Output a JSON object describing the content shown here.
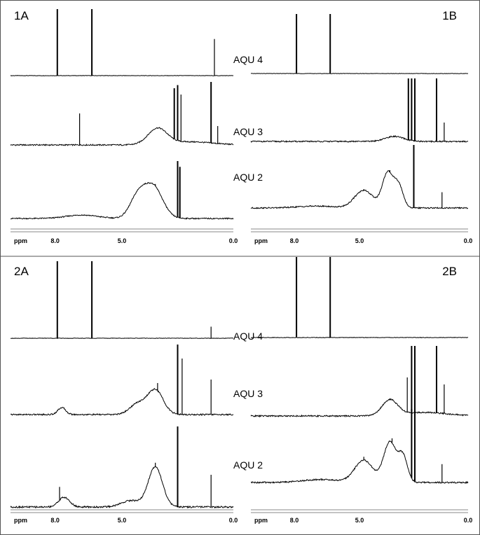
{
  "chart_data": [
    {
      "type": "line",
      "panel": "1A",
      "x_unit": "ppm",
      "xlim": [
        10.0,
        0.0
      ],
      "x_ticks": [
        "8.0",
        "5.0",
        "0.0"
      ],
      "x_tick_values": [
        8.0,
        5.0,
        0.0
      ],
      "series": [
        {
          "name": "AQU 4",
          "peaks_ppm": [
            7.9,
            6.35,
            0.85
          ],
          "heights": [
            1.0,
            1.0,
            0.55
          ]
        },
        {
          "name": "AQU 3",
          "peaks_ppm": [
            6.9,
            2.65,
            2.5,
            2.35,
            1.0,
            0.7
          ],
          "heights": [
            0.5,
            0.9,
            0.95,
            0.8,
            1.0,
            0.3
          ]
        },
        {
          "name": "AQU 2",
          "peaks_ppm": [
            3.5,
            2.5,
            2.4
          ],
          "heights": [
            0.6,
            1.0,
            0.9
          ]
        }
      ]
    },
    {
      "type": "line",
      "panel": "1B",
      "x_unit": "ppm",
      "xlim": [
        10.0,
        0.0
      ],
      "x_ticks": [
        "8.0",
        "5.0",
        "0.0"
      ],
      "x_tick_values": [
        8.0,
        5.0,
        0.0
      ],
      "series": [
        {
          "name": "AQU 4",
          "peaks_ppm": [
            7.9,
            6.35
          ],
          "heights": [
            1.0,
            1.0
          ]
        },
        {
          "name": "AQU 3",
          "peaks_ppm": [
            2.75,
            2.6,
            2.45,
            1.45,
            1.1
          ],
          "heights": [
            1.0,
            1.0,
            1.0,
            1.0,
            0.3
          ]
        },
        {
          "name": "AQU 2",
          "peaks_ppm": [
            4.8,
            3.6,
            2.5,
            1.2
          ],
          "heights": [
            0.3,
            0.6,
            1.0,
            0.25
          ]
        }
      ]
    },
    {
      "type": "line",
      "panel": "2A",
      "x_unit": "ppm",
      "xlim": [
        10.0,
        0.0
      ],
      "x_ticks": [
        "8.0",
        "5.0",
        "0.0"
      ],
      "x_tick_values": [
        8.0,
        5.0,
        0.0
      ],
      "series": [
        {
          "name": "AQU 4",
          "peaks_ppm": [
            7.9,
            6.35,
            1.0
          ],
          "heights": [
            1.0,
            1.0,
            0.15
          ]
        },
        {
          "name": "AQU 3",
          "peaks_ppm": [
            7.6,
            3.4,
            2.5,
            2.3,
            1.0
          ],
          "heights": [
            0.1,
            0.45,
            1.0,
            0.8,
            0.5
          ]
        },
        {
          "name": "AQU 2",
          "peaks_ppm": [
            7.8,
            3.5,
            2.5,
            1.0
          ],
          "heights": [
            0.25,
            0.55,
            1.0,
            0.4
          ]
        }
      ]
    },
    {
      "type": "line",
      "panel": "2B",
      "x_unit": "ppm",
      "xlim": [
        10.0,
        0.0
      ],
      "x_ticks": [
        "8.0",
        "5.0",
        "0.0"
      ],
      "x_tick_values": [
        8.0,
        5.0,
        0.0
      ],
      "series": [
        {
          "name": "AQU 4",
          "peaks_ppm": [
            7.9,
            6.35
          ],
          "heights": [
            1.0,
            1.0
          ]
        },
        {
          "name": "AQU 3",
          "peaks_ppm": [
            2.8,
            2.6,
            2.45,
            1.45,
            1.1
          ],
          "heights": [
            0.55,
            1.0,
            1.0,
            1.0,
            0.45
          ]
        },
        {
          "name": "AQU 2",
          "peaks_ppm": [
            4.8,
            3.5,
            2.6,
            2.45,
            1.2
          ],
          "heights": [
            0.35,
            0.6,
            1.0,
            1.0,
            0.25
          ]
        }
      ]
    }
  ],
  "style": {
    "line_color": "#000000",
    "border_color": "#555555",
    "axis_color": "#888888"
  }
}
